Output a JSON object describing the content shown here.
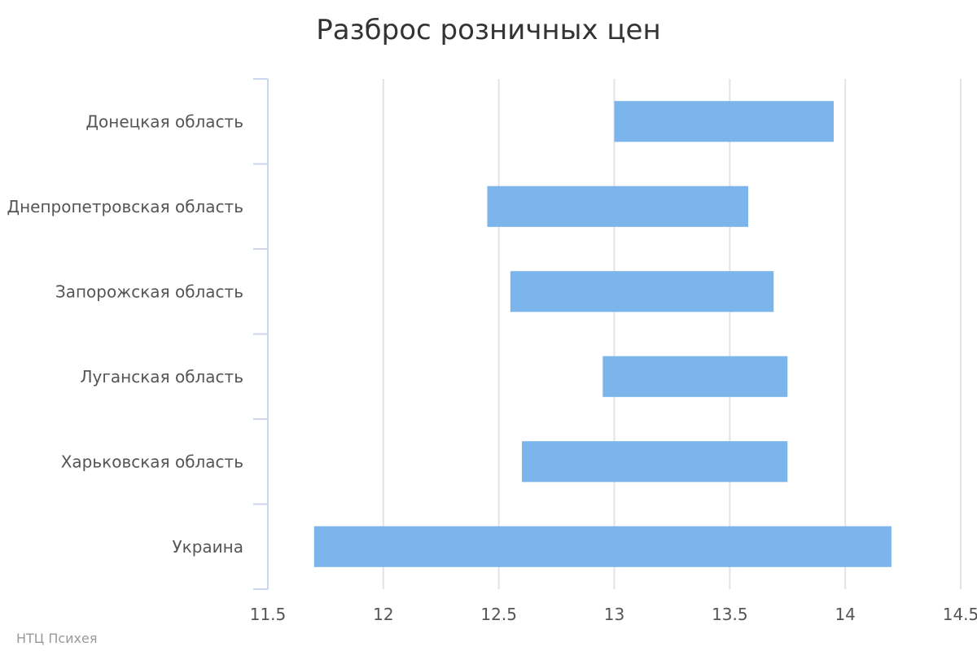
{
  "chart_data": {
    "type": "bar",
    "orientation": "horizontal",
    "subtype": "range",
    "title": "Разброс розничных цен",
    "xlabel": "",
    "ylabel": "",
    "categories": [
      "Донецкая область",
      "Днепропетровская область",
      "Запорожская область",
      "Луганская область",
      "Харьковская область",
      "Украина"
    ],
    "series": [
      {
        "low": [
          13.0,
          12.45,
          12.55,
          12.95,
          12.6,
          11.7
        ],
        "high": [
          13.95,
          13.58,
          13.69,
          13.75,
          13.75,
          14.2
        ],
        "color": "#7cb5ec"
      }
    ],
    "xlim": [
      11.5,
      14.5
    ],
    "xticks": [
      "11.5",
      "12",
      "12.5",
      "13",
      "13.5",
      "14",
      "14.5"
    ],
    "grid": true,
    "legend": "none"
  },
  "credits": "НТЦ Психея"
}
